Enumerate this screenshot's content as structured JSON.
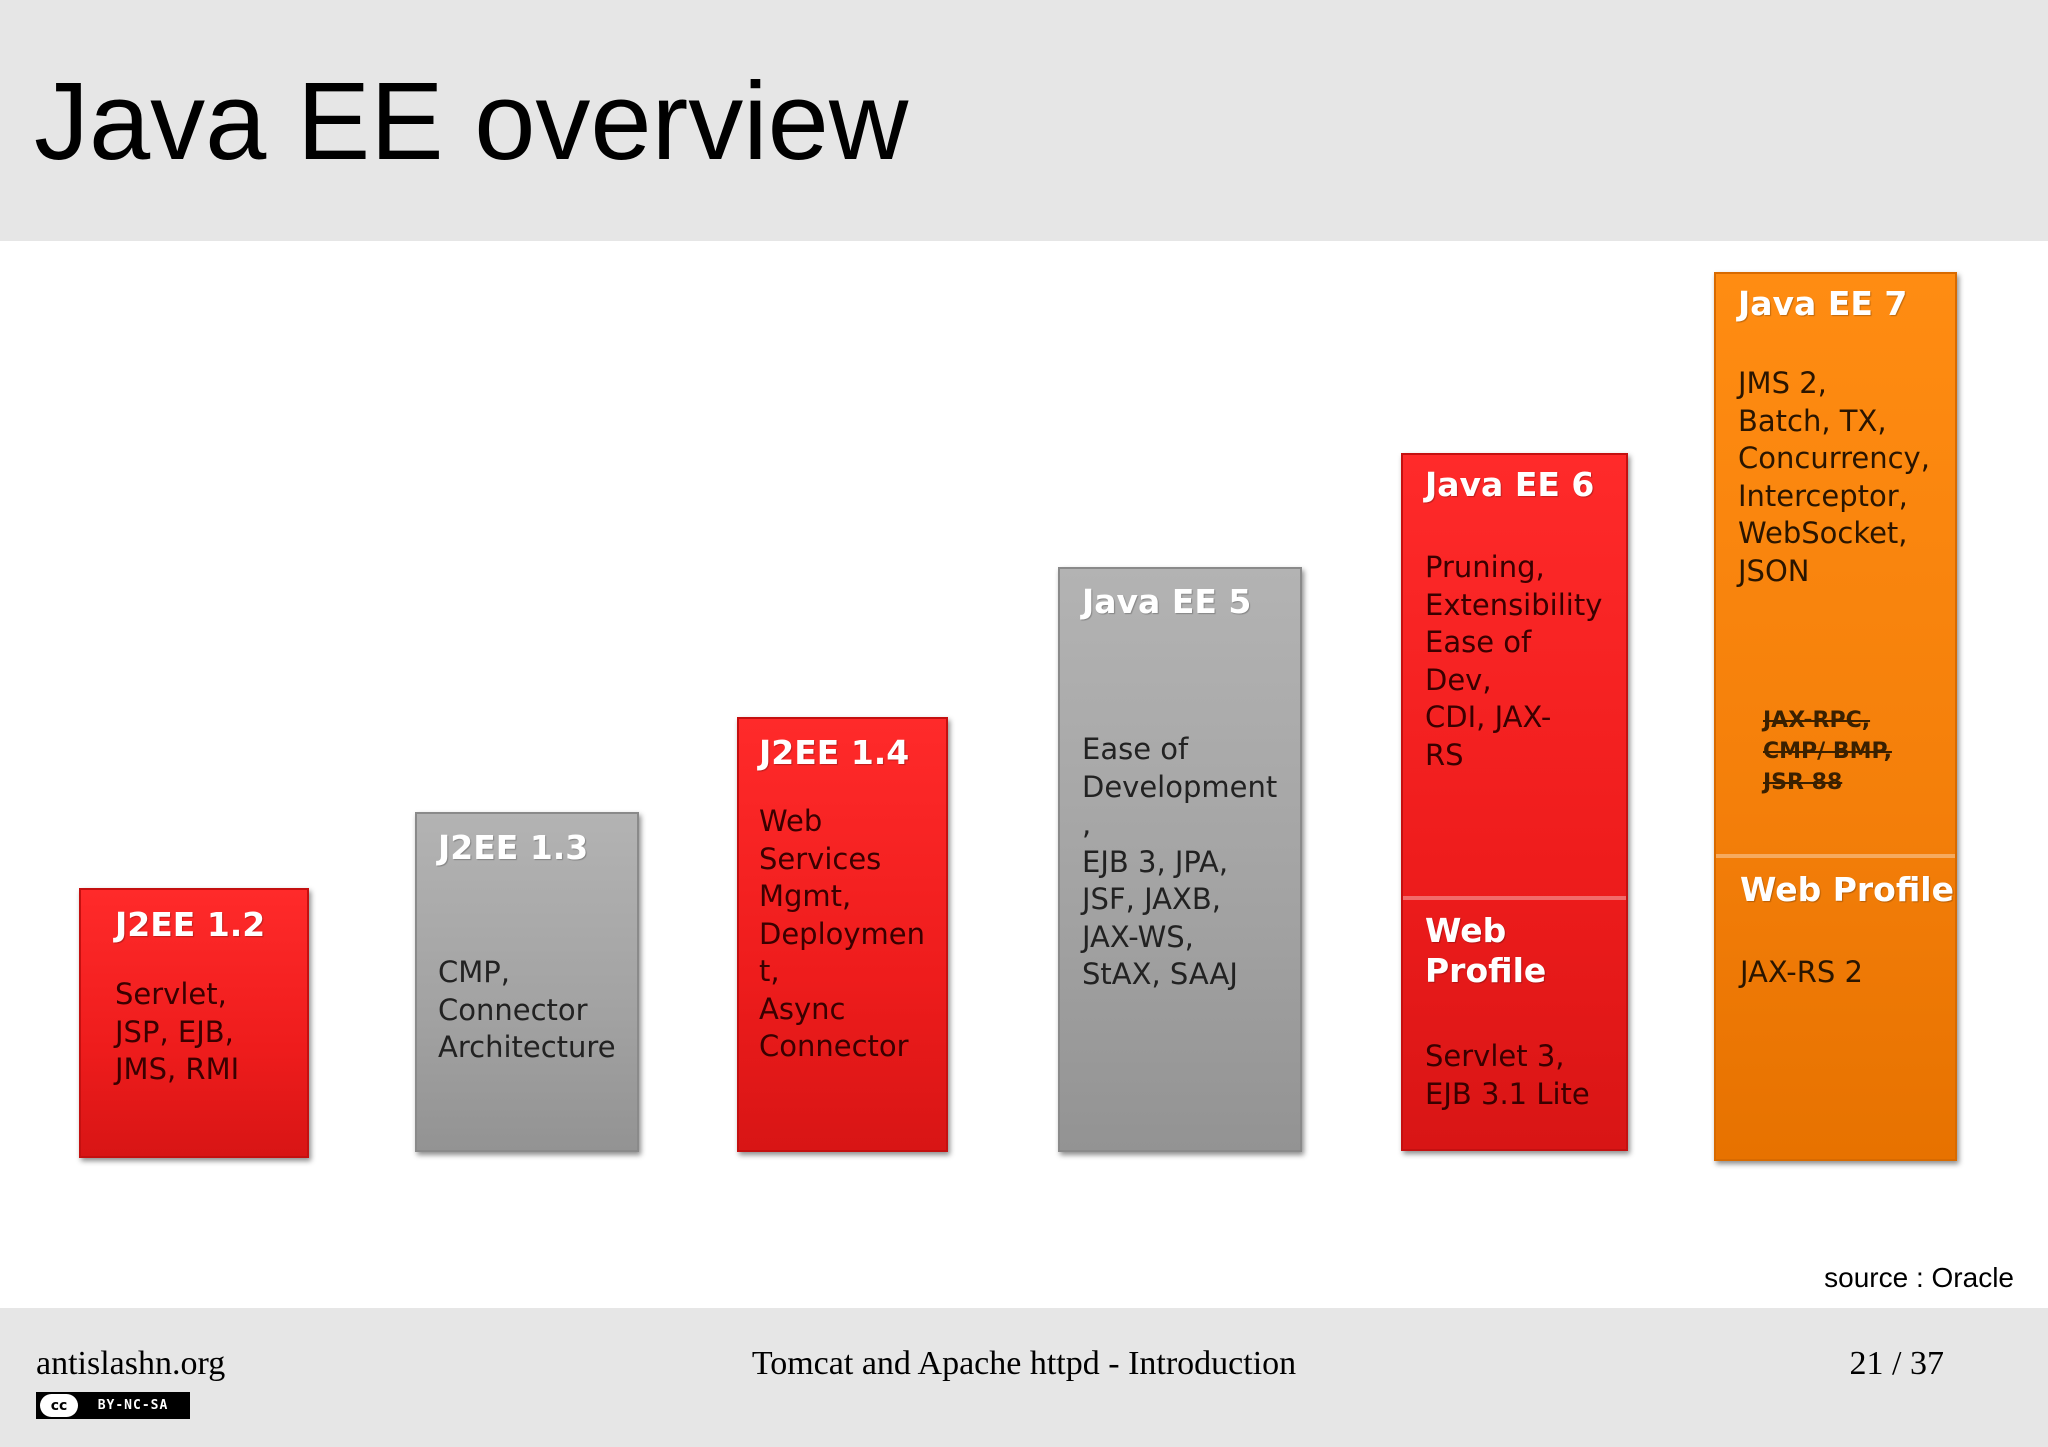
{
  "slide": {
    "title": "Java EE overview",
    "source": "source : Oracle"
  },
  "versions": [
    {
      "name": "J2EE 1.2",
      "features": "Servlet,\nJSP, EJB,\nJMS, RMI",
      "color": "#ee1c1c"
    },
    {
      "name": "J2EE 1.3",
      "features": "CMP,\nConnector\nArchitecture",
      "color": "#a2a2a2"
    },
    {
      "name": "J2EE 1.4",
      "features": "Web\nServices\nMgmt,\nDeploymen\nt,\nAsync\nConnector",
      "color": "#ee1c1c"
    },
    {
      "name": "Java EE 5",
      "features": "Ease of\nDevelopment\n,\nEJB 3, JPA,\nJSF, JAXB,\nJAX-WS,\nStAX, SAAJ",
      "color": "#a2a2a2"
    },
    {
      "name": "Java EE 6",
      "features": "Pruning,\nExtensibility\nEase of\nDev,\nCDI, JAX-\nRS",
      "color": "#ee1c1c",
      "web_profile": {
        "label": "Web\nProfile",
        "features": "Servlet 3,\nEJB 3.1 Lite"
      }
    },
    {
      "name": "Java EE 7",
      "features": "JMS 2,\nBatch, TX,\nConcurrency,\nInterceptor,\nWebSocket,\nJSON",
      "color": "#f47f0a",
      "removed": "JAX-RPC,\nCMP/ BMP,\nJSR 88",
      "web_profile": {
        "label": "Web Profile",
        "features": "JAX-RS 2"
      }
    }
  ],
  "footer": {
    "left": "antislashn.org",
    "center": "Tomcat and Apache httpd - Introduction",
    "page": "21 / 37",
    "license_logo": "cc",
    "license": "BY-NC-SA"
  }
}
